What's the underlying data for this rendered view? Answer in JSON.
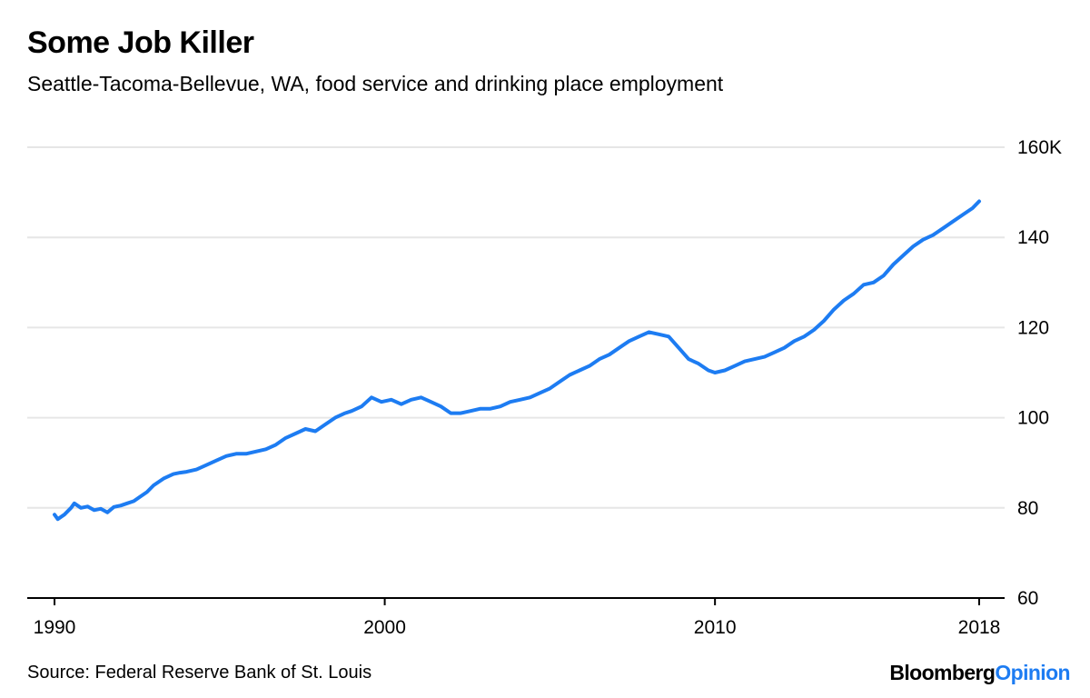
{
  "title": "Some Job Killer",
  "subtitle": "Seattle-Tacoma-Bellevue, WA, food service and drinking place employment",
  "source": "Source: Federal Reserve Bank of St. Louis",
  "brand": {
    "part1": "Bloomberg",
    "part2": "Opinion"
  },
  "colors": {
    "line": "#1d7cf2",
    "brand_accent": "#1d7cf2",
    "grid": "#e6e6e6",
    "axis": "#000000"
  },
  "chart_data": {
    "type": "line",
    "title": "Some Job Killer",
    "subtitle": "Seattle-Tacoma-Bellevue, WA, food service and drinking place employment",
    "xlabel": "",
    "ylabel": "",
    "xlim": [
      1989.9,
      2018.8
    ],
    "ylim": [
      60,
      160
    ],
    "y_ticks": [
      60,
      80,
      100,
      120,
      140,
      160
    ],
    "y_tick_labels": [
      "60",
      "80",
      "100",
      "120",
      "140",
      "160K"
    ],
    "x_ticks": [
      1990,
      2000,
      2010,
      2018
    ],
    "x_tick_labels": [
      "1990",
      "2000",
      "2010",
      "2018"
    ],
    "grid": true,
    "y_axis_position": "right",
    "series": [
      {
        "x": [
          1990.0,
          1990.1,
          1990.3,
          1990.5,
          1990.6,
          1990.8,
          1991.0,
          1991.2,
          1991.4,
          1991.6,
          1991.8,
          1992.0,
          1992.2,
          1992.4,
          1992.6,
          1992.8,
          1993.0,
          1993.3,
          1993.6,
          1993.8,
          1994.0,
          1994.3,
          1994.6,
          1994.9,
          1995.2,
          1995.5,
          1995.8,
          1996.1,
          1996.4,
          1996.7,
          1997.0,
          1997.3,
          1997.6,
          1997.9,
          1998.2,
          1998.5,
          1998.8,
          1999.0,
          1999.3,
          1999.6,
          1999.9,
          2000.2,
          2000.5,
          2000.8,
          2001.1,
          2001.4,
          2001.7,
          2002.0,
          2002.3,
          2002.6,
          2002.9,
          2003.2,
          2003.5,
          2003.8,
          2004.1,
          2004.4,
          2004.7,
          2005.0,
          2005.3,
          2005.6,
          2005.9,
          2006.2,
          2006.5,
          2006.8,
          2007.1,
          2007.4,
          2007.7,
          2008.0,
          2008.3,
          2008.6,
          2008.9,
          2009.2,
          2009.5,
          2009.8,
          2010.0,
          2010.3,
          2010.6,
          2010.9,
          2011.2,
          2011.5,
          2011.8,
          2012.1,
          2012.4,
          2012.7,
          2013.0,
          2013.3,
          2013.6,
          2013.9,
          2014.2,
          2014.5,
          2014.8,
          2015.1,
          2015.4,
          2015.7,
          2016.0,
          2016.3,
          2016.6,
          2016.9,
          2017.2,
          2017.5,
          2017.8,
          2018.0
        ],
        "y": [
          78.5,
          77.5,
          78.5,
          80.0,
          81.0,
          80.0,
          80.3,
          79.5,
          79.8,
          79.0,
          80.2,
          80.5,
          81.0,
          81.5,
          82.5,
          83.5,
          85.0,
          86.5,
          87.5,
          87.8,
          88.0,
          88.5,
          89.5,
          90.5,
          91.5,
          92.0,
          92.0,
          92.5,
          93.0,
          94.0,
          95.5,
          96.5,
          97.5,
          97.0,
          98.5,
          100.0,
          101.0,
          101.5,
          102.5,
          104.5,
          103.5,
          104.0,
          103.0,
          104.0,
          104.5,
          103.5,
          102.5,
          101.0,
          101.0,
          101.5,
          102.0,
          102.0,
          102.5,
          103.5,
          104.0,
          104.5,
          105.5,
          106.5,
          108.0,
          109.5,
          110.5,
          111.5,
          113.0,
          114.0,
          115.5,
          117.0,
          118.0,
          119.0,
          118.5,
          118.0,
          115.5,
          113.0,
          112.0,
          110.5,
          110.0,
          110.5,
          111.5,
          112.5,
          113.0,
          113.5,
          114.5,
          115.5,
          117.0,
          118.0,
          119.5,
          121.5,
          124.0,
          126.0,
          127.5,
          129.5,
          130.0,
          131.5,
          134.0,
          136.0,
          138.0,
          139.5,
          140.5,
          142.0,
          143.5,
          145.0,
          146.5,
          148.0
        ]
      }
    ]
  }
}
